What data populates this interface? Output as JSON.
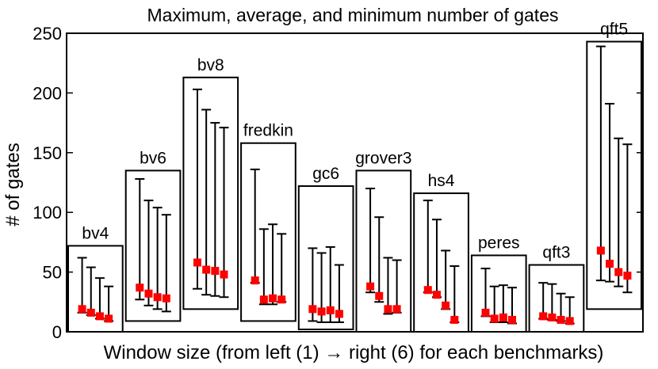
{
  "chart_data": {
    "type": "errorbar-boxes",
    "title": "Maximum, average, and minimum number of gates",
    "xlabel": "Window size (from left (1) → right (6) for each benchmarks)",
    "ylabel": "# of gates",
    "ylim": [
      0,
      250
    ],
    "yticks": [
      0,
      50,
      100,
      150,
      200,
      250
    ],
    "benchmarks": [
      {
        "name": "bv4",
        "box": [
          0,
          72
        ],
        "max": [
          62,
          54,
          45,
          38
        ],
        "avg": [
          19,
          16,
          13,
          11
        ],
        "min": [
          16,
          14,
          11,
          9
        ]
      },
      {
        "name": "bv6",
        "box": [
          9,
          135
        ],
        "max": [
          128,
          110,
          104,
          98
        ],
        "avg": [
          37,
          32,
          29,
          28
        ],
        "min": [
          27,
          22,
          19,
          17
        ]
      },
      {
        "name": "bv8",
        "box": [
          19,
          213
        ],
        "max": [
          203,
          186,
          175,
          171
        ],
        "avg": [
          58,
          52,
          51,
          48
        ],
        "min": [
          36,
          31,
          30,
          29
        ]
      },
      {
        "name": "fredkin",
        "box": [
          9,
          158
        ],
        "max": [
          136,
          86,
          90,
          82
        ],
        "avg": [
          43,
          27,
          28,
          27
        ],
        "min": [
          41,
          23,
          23,
          25
        ]
      },
      {
        "name": "gc6",
        "box": [
          2,
          122
        ],
        "max": [
          70,
          66,
          71,
          56
        ],
        "avg": [
          19,
          17,
          18,
          15
        ],
        "min": [
          9,
          8,
          8,
          8
        ]
      },
      {
        "name": "grover3",
        "box": [
          0,
          135
        ],
        "max": [
          120,
          96,
          62,
          60
        ],
        "avg": [
          38,
          30,
          19,
          19
        ],
        "min": [
          33,
          25,
          15,
          16
        ]
      },
      {
        "name": "hs4",
        "box": [
          0,
          116
        ],
        "max": [
          110,
          94,
          68,
          55
        ],
        "avg": [
          35,
          31,
          22,
          10
        ],
        "min": [
          33,
          29,
          19,
          8
        ]
      },
      {
        "name": "peres",
        "box": [
          0,
          64
        ],
        "max": [
          53,
          38,
          39,
          37
        ],
        "avg": [
          16,
          11,
          12,
          10
        ],
        "min": [
          13,
          8,
          8,
          7
        ]
      },
      {
        "name": "qft3",
        "box": [
          0,
          56
        ],
        "max": [
          41,
          40,
          32,
          29
        ],
        "avg": [
          13,
          12,
          10,
          9
        ],
        "min": [
          11,
          10,
          9,
          7
        ]
      },
      {
        "name": "qft5",
        "box": [
          19,
          243
        ],
        "max": [
          239,
          191,
          162,
          157
        ],
        "avg": [
          68,
          57,
          50,
          47
        ],
        "min": [
          43,
          42,
          38,
          33
        ]
      }
    ]
  }
}
